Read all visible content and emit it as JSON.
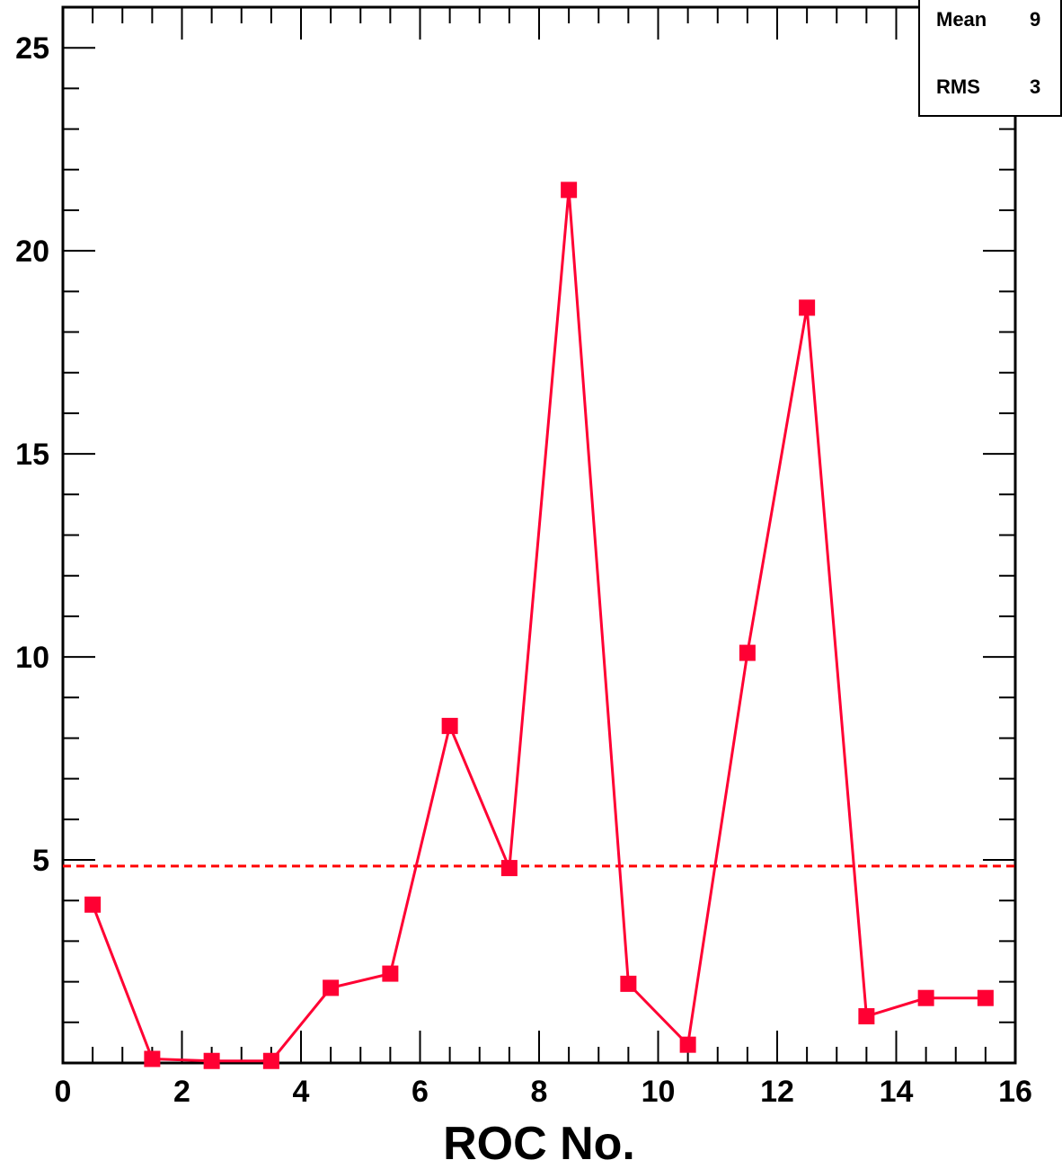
{
  "chart_data": {
    "type": "line",
    "xlabel": "ROC No.",
    "ylabel": "",
    "xlim": [
      0,
      16
    ],
    "ylim": [
      0,
      26
    ],
    "x_ticks": [
      "0",
      "2",
      "4",
      "6",
      "8",
      "10",
      "12",
      "14",
      "16"
    ],
    "y_ticks": [
      "5",
      "10",
      "15",
      "20",
      "25"
    ],
    "series": [
      {
        "x": [
          0.5,
          1.5,
          2.5,
          3.5,
          4.5,
          5.5,
          6.5,
          7.5,
          8.5,
          9.5,
          10.5,
          11.5,
          12.5,
          13.5,
          14.5,
          15.5
        ],
        "values": [
          3.9,
          0.1,
          0.05,
          0.05,
          1.85,
          2.2,
          8.3,
          4.8,
          21.5,
          1.95,
          0.45,
          10.1,
          18.6,
          1.15,
          1.6,
          1.6
        ]
      }
    ],
    "reference_line": {
      "y": 4.85,
      "style": "dashed",
      "color": "#ff0000"
    },
    "line_color": "#ff0033",
    "marker": "square",
    "grid": false,
    "stats": {
      "mean_label": "Mean",
      "mean_value": "9",
      "rms_label": "RMS",
      "rms_value": "3"
    }
  }
}
